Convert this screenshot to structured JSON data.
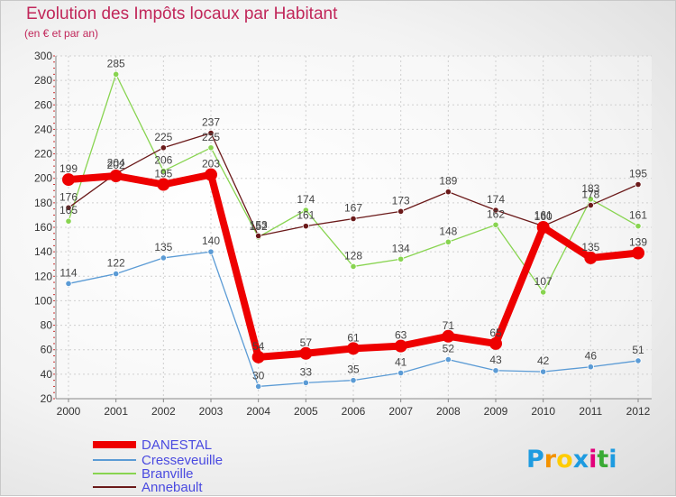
{
  "chart_data": {
    "type": "line",
    "title": "Evolution des Impôts locaux par Habitant",
    "subtitle": "(en € et par an)",
    "categories": [
      "2000",
      "2001",
      "2002",
      "2003",
      "2004",
      "2005",
      "2006",
      "2007",
      "2008",
      "2009",
      "2010",
      "2011",
      "2012"
    ],
    "ylim": [
      20,
      300
    ],
    "yticks": [
      20,
      40,
      60,
      80,
      100,
      120,
      140,
      160,
      180,
      200,
      220,
      240,
      260,
      280,
      300
    ],
    "grid": true,
    "legend_position": "bottom-left",
    "series": [
      {
        "name": "DANESTAL",
        "color": "#ee0000",
        "values": [
          199,
          202,
          195,
          203,
          54,
          57,
          61,
          63,
          71,
          65,
          160,
          135,
          139
        ]
      },
      {
        "name": "Cresseveuille",
        "color": "#5b9bd5",
        "values": [
          114,
          122,
          135,
          140,
          30,
          33,
          35,
          41,
          52,
          43,
          42,
          46,
          51
        ]
      },
      {
        "name": "Branville",
        "color": "#88d450",
        "values": [
          165,
          285,
          206,
          225,
          152,
          174,
          128,
          134,
          148,
          162,
          107,
          183,
          161
        ]
      },
      {
        "name": "Annebault",
        "color": "#6b1a1a",
        "values": [
          176,
          204,
          225,
          237,
          153,
          161,
          167,
          173,
          189,
          174,
          161,
          178,
          195
        ]
      }
    ]
  },
  "logo": {
    "text": "Proxiti",
    "letters": [
      {
        "ch": "P",
        "color": "#1e9be0"
      },
      {
        "ch": "r",
        "color": "#f39200"
      },
      {
        "ch": "o",
        "color": "#ffcc00"
      },
      {
        "ch": "x",
        "color": "#1e9be0"
      },
      {
        "ch": "i",
        "color": "#e2007a"
      },
      {
        "ch": "t",
        "color": "#3aaa35"
      },
      {
        "ch": "i",
        "color": "#1e9be0"
      }
    ]
  }
}
